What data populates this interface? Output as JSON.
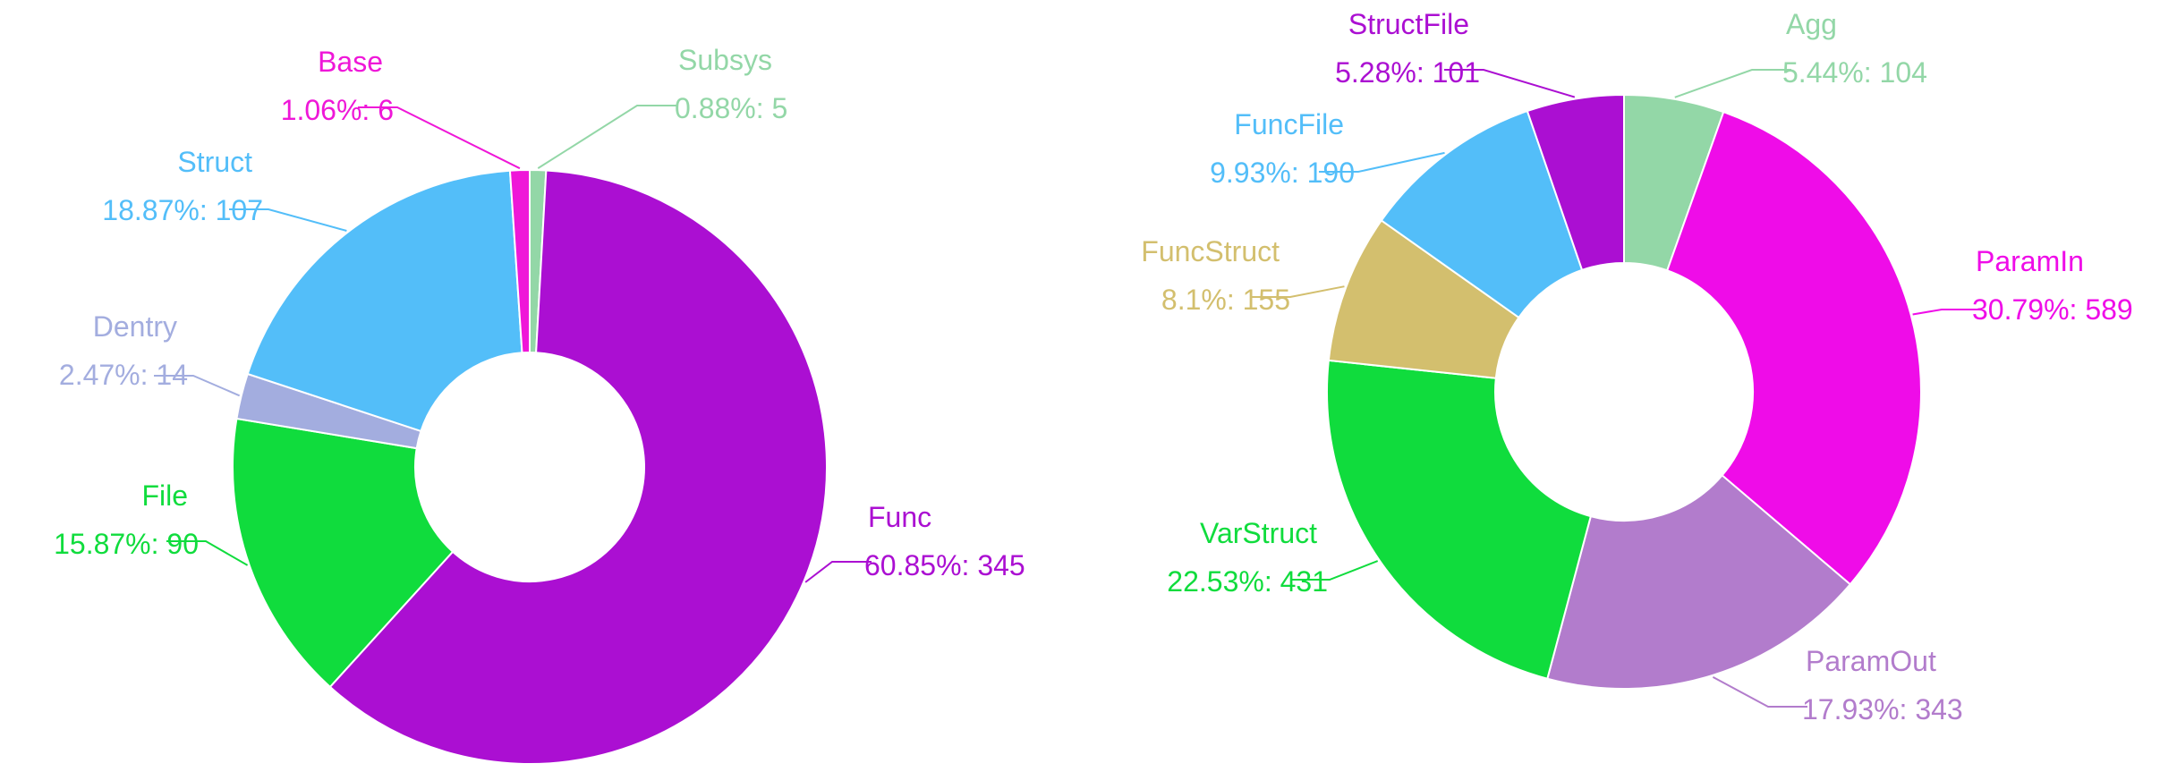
{
  "chart_data": [
    {
      "type": "pie",
      "donut": true,
      "title": "",
      "start": "top",
      "direction": "clockwise",
      "slices": [
        {
          "name": "Subsys",
          "value": 5,
          "percent": "0.88%",
          "label": "0.88%: 5",
          "color": "#93d7a7"
        },
        {
          "name": "Func",
          "value": 345,
          "percent": "60.85%",
          "label": "60.85%: 345",
          "color": "#ab0fd2"
        },
        {
          "name": "File",
          "value": 90,
          "percent": "15.87%",
          "label": "15.87%: 90",
          "color": "#10dc3d"
        },
        {
          "name": "Dentry",
          "value": 14,
          "percent": "2.47%",
          "label": "2.47%: 14",
          "color": "#a3addf"
        },
        {
          "name": "Struct",
          "value": 107,
          "percent": "18.87%",
          "label": "18.87%: 107",
          "color": "#53bef9"
        },
        {
          "name": "Base",
          "value": 6,
          "percent": "1.06%",
          "label": "1.06%: 6",
          "color": "#ef17d8"
        }
      ]
    },
    {
      "type": "pie",
      "donut": true,
      "title": "",
      "start": "top",
      "direction": "clockwise",
      "slices": [
        {
          "name": "Agg",
          "value": 104,
          "percent": "5.44%",
          "label": "5.44%: 104",
          "color": "#93d7a7"
        },
        {
          "name": "ParamIn",
          "value": 589,
          "percent": "30.79%",
          "label": "30.79%: 589",
          "color": "#ef0ce8"
        },
        {
          "name": "ParamOut",
          "value": 343,
          "percent": "17.93%",
          "label": "17.93%: 343",
          "color": "#b27ccc"
        },
        {
          "name": "VarStruct",
          "value": 431,
          "percent": "22.53%",
          "label": "22.53%: 431",
          "color": "#10dc3d"
        },
        {
          "name": "FuncStruct",
          "value": 155,
          "percent": "8.1%",
          "label": "8.1%: 155",
          "color": "#d3bf6e"
        },
        {
          "name": "FuncFile",
          "value": 190,
          "percent": "9.93%",
          "label": "9.93%: 190",
          "color": "#53bef9"
        },
        {
          "name": "StructFile",
          "value": 101,
          "percent": "5.28%",
          "label": "5.28%: 101",
          "color": "#ab0fd2"
        }
      ]
    }
  ]
}
